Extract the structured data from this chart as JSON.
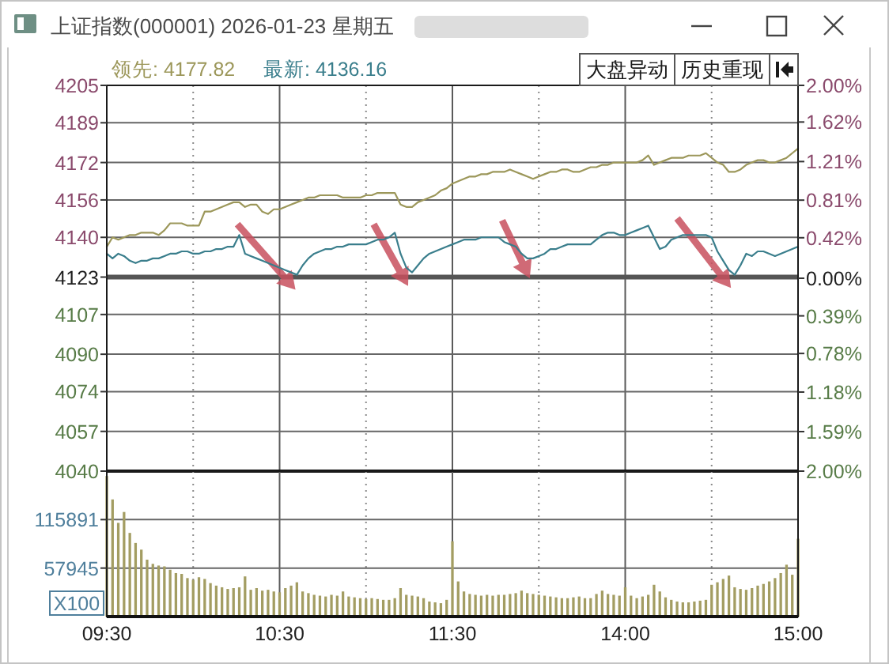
{
  "chart_data": [
    {
      "type": "line",
      "title": "上证指数(000001) 2026-01-23 星期五",
      "annotations": [
        "大盘异动",
        "历史重现"
      ],
      "legend": "top left",
      "grid": true,
      "categories": [
        null,
        null,
        null,
        null,
        null,
        null,
        null,
        null,
        null,
        null,
        null,
        null,
        null,
        null,
        null,
        null,
        null,
        null,
        null,
        null,
        null,
        null,
        null,
        null,
        null,
        null,
        null,
        null,
        null,
        null,
        null,
        null,
        null,
        null,
        null,
        null,
        null,
        null,
        null,
        null,
        null,
        null,
        null,
        null,
        null,
        null,
        null,
        null,
        null,
        null,
        null,
        null,
        null,
        null,
        null,
        null,
        null,
        null,
        null,
        null,
        null,
        null,
        null,
        null,
        null,
        null,
        null,
        null,
        null,
        null,
        null,
        null,
        null,
        null,
        null,
        null,
        null,
        null,
        null,
        null,
        null,
        null,
        null,
        null,
        null,
        null,
        null,
        null,
        null,
        null,
        null,
        null,
        null,
        null,
        null,
        null,
        null,
        null,
        null,
        null,
        null,
        null,
        null,
        null,
        null,
        null,
        null,
        null,
        null,
        null,
        null,
        null,
        null,
        null,
        null,
        null,
        null,
        null,
        null,
        null,
        null
      ],
      "ylim": [
        4040,
        4205
      ],
      "yticks": [
        4040,
        4057,
        4074,
        4090,
        4107,
        4123,
        4140,
        4156,
        4172,
        4189,
        4205
      ],
      "y2lim": [
        -2,
        2
      ],
      "y2ticks": [
        {
          "value": 2,
          "label": "2.00%"
        },
        {
          "value": 1.62,
          "label": "1.62%"
        },
        {
          "value": 1.21,
          "label": "1.21%"
        },
        {
          "value": 0.81,
          "label": "0.81%"
        },
        {
          "value": 0.42,
          "label": "0.42%"
        },
        {
          "value": 0,
          "label": "0.00%"
        },
        {
          "value": -0.39,
          "label": "0.39%"
        },
        {
          "value": -0.78,
          "label": "0.78%"
        },
        {
          "value": -1.18,
          "label": "1.18%"
        },
        {
          "value": -1.59,
          "label": "1.59%"
        },
        {
          "value": -2,
          "label": "2.00%"
        }
      ],
      "ref_lines": [
        {
          "axis": "y",
          "value": 4123,
          "color": "#555555"
        }
      ],
      "series": [
        {
          "name": "领先: 4177.82",
          "color": "#9c975a",
          "values": [
            4136,
            4140,
            4139,
            4140,
            4141,
            4141,
            4142,
            4142,
            4142,
            4141,
            4143,
            4146,
            4146,
            4146,
            4145,
            4145,
            4145,
            4151,
            4151,
            4152,
            4153,
            4154,
            4155,
            4155,
            4153,
            4154,
            4154,
            4151,
            4150,
            4152,
            4152,
            4153,
            4154,
            4155,
            4156,
            4157,
            4157,
            4158,
            4158,
            4158,
            4158,
            4157,
            4157,
            4157,
            4157,
            4158,
            4158,
            4159,
            4159,
            4159,
            4159,
            4154,
            4153,
            4153,
            4155,
            4156,
            4157,
            4158,
            4160,
            4161,
            4163,
            4164,
            4165,
            4166,
            4166,
            4167,
            4167,
            4168,
            4168,
            4168,
            4169,
            4168,
            4167,
            4166,
            4165,
            4166,
            4167,
            4168,
            4168,
            4169,
            4169,
            4168,
            4168,
            4169,
            4170,
            4170,
            4171,
            4171,
            4172,
            4172,
            4172,
            4172,
            4172,
            4173,
            4175,
            4171,
            4172,
            4173,
            4174,
            4174,
            4174,
            4175,
            4175,
            4175,
            4176,
            4174,
            4172,
            4171,
            4168,
            4168,
            4169,
            4171,
            4172,
            4173,
            4173,
            4172,
            4172,
            4173,
            4174,
            4176,
            4178
          ]
        },
        {
          "name": "最新: 4136.16",
          "color": "#3a7e8c",
          "values": [
            4133,
            4131,
            4133,
            4132,
            4130,
            4129,
            4130,
            4130,
            4131,
            4131,
            4132,
            4133,
            4133,
            4134,
            4134,
            4133,
            4133,
            4134,
            4134,
            4135,
            4135,
            4136,
            4136,
            4141,
            4133,
            4132,
            4131,
            4130,
            4129,
            4128,
            4127,
            4126,
            4125,
            4124,
            4128,
            4131,
            4133,
            4134,
            4135,
            4135,
            4136,
            4136,
            4137,
            4137,
            4137,
            4137,
            4138,
            4139,
            4139,
            4140,
            4142,
            4133,
            4127,
            4125,
            4128,
            4131,
            4133,
            4134,
            4135,
            4136,
            4137,
            4138,
            4139,
            4139,
            4139,
            4140,
            4140,
            4140,
            4140,
            4138,
            4137,
            4136,
            4133,
            4131,
            4131,
            4132,
            4133,
            4135,
            4135,
            4136,
            4137,
            4137,
            4137,
            4137,
            4137,
            4139,
            4141,
            4142,
            4142,
            4141,
            4141,
            4142,
            4143,
            4144,
            4145,
            4140,
            4135,
            4136,
            4139,
            4140,
            4141,
            4141,
            4141,
            4141,
            4141,
            4140,
            4134,
            4130,
            4126,
            4124,
            4128,
            4133,
            4132,
            4134,
            4134,
            4133,
            4132,
            4133,
            4134,
            4135,
            4136
          ]
        }
      ]
    },
    {
      "type": "bar",
      "ylabel": "X100",
      "grid": true,
      "color": "#a39d62",
      "categories": [
        "09:30",
        null,
        null,
        null,
        null,
        null,
        null,
        null,
        null,
        null,
        null,
        null,
        null,
        null,
        null,
        null,
        null,
        null,
        null,
        null,
        null,
        null,
        null,
        null,
        null,
        null,
        null,
        null,
        null,
        null,
        "10:30",
        null,
        null,
        null,
        null,
        null,
        null,
        null,
        null,
        null,
        null,
        null,
        null,
        null,
        null,
        null,
        null,
        null,
        null,
        null,
        null,
        null,
        null,
        null,
        null,
        null,
        null,
        null,
        null,
        null,
        "11:30",
        null,
        null,
        null,
        null,
        null,
        null,
        null,
        null,
        null,
        null,
        null,
        null,
        null,
        null,
        null,
        null,
        null,
        null,
        null,
        null,
        null,
        null,
        null,
        null,
        null,
        null,
        null,
        null,
        null,
        "14:00",
        null,
        null,
        null,
        null,
        null,
        null,
        null,
        null,
        null,
        null,
        null,
        null,
        null,
        null,
        null,
        null,
        null,
        null,
        null,
        null,
        null,
        null,
        null,
        null,
        null,
        null,
        null,
        null,
        null,
        "15:00"
      ],
      "ylim": [
        0,
        173836
      ],
      "yticks": [
        57945,
        115891
      ],
      "values": [
        168000,
        140000,
        112000,
        125000,
        100000,
        88000,
        80000,
        68000,
        63000,
        61000,
        60000,
        56000,
        52000,
        51000,
        46000,
        44000,
        47000,
        45000,
        40000,
        37000,
        35000,
        33000,
        34000,
        35000,
        48000,
        32000,
        34000,
        31000,
        32000,
        30000,
        29000,
        34000,
        37000,
        41000,
        30000,
        28000,
        26000,
        25000,
        24000,
        26000,
        25000,
        30000,
        24000,
        23000,
        22000,
        21000,
        22000,
        21000,
        20000,
        20000,
        22000,
        34000,
        26000,
        25000,
        24000,
        22000,
        18000,
        17000,
        16000,
        20000,
        90000,
        42000,
        30000,
        27000,
        26000,
        25000,
        26000,
        25000,
        26000,
        26000,
        27000,
        28000,
        31000,
        28000,
        27000,
        26000,
        25000,
        24000,
        23000,
        22000,
        22000,
        23000,
        24000,
        22000,
        22000,
        27000,
        31000,
        27000,
        26000,
        25000,
        35000,
        25000,
        22000,
        24000,
        26000,
        38000,
        30000,
        23000,
        20000,
        18000,
        17000,
        17000,
        18000,
        19000,
        20000,
        38000,
        41000,
        45000,
        49000,
        35000,
        33000,
        32000,
        34000,
        37000,
        39000,
        42000,
        46000,
        52000,
        62000,
        50000,
        93000
      ]
    }
  ]
}
